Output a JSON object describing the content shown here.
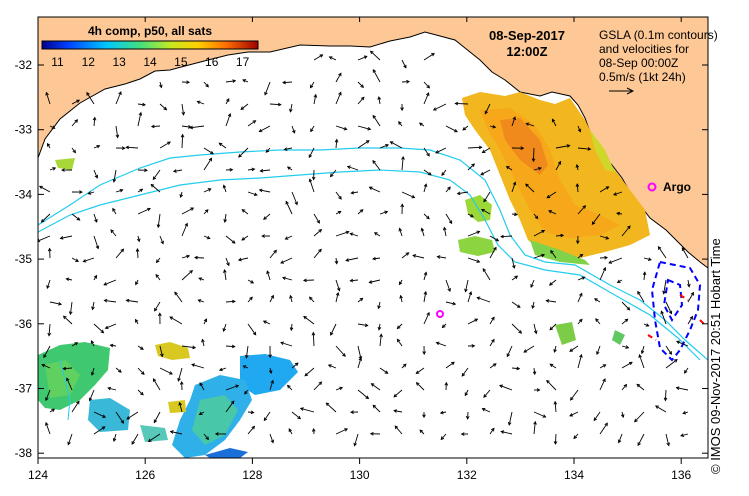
{
  "map": {
    "date": "08-Sep-2017",
    "time": "12:00Z",
    "colorbar": {
      "title": "4h comp, p50, all sats",
      "ticks": [
        "11",
        "12",
        "13",
        "14",
        "15",
        "16",
        "17"
      ],
      "range": [
        10.5,
        17.5
      ]
    },
    "legend": {
      "line1": "GSLA (0.1m contours)",
      "line2": "and velocities for",
      "line3": "08-Sep 00:00Z",
      "line4": "0.5m/s (1kt 24h)"
    },
    "argo_label": "Argo",
    "x_ticks": [
      "124",
      "126",
      "128",
      "130",
      "132",
      "134",
      "136"
    ],
    "y_ticks": [
      "-32",
      "-33",
      "-34",
      "-35",
      "-36",
      "-37",
      "-38"
    ],
    "credit": "© IMOS 09-Nov-2017 20:51 Hobart Time",
    "colors": {
      "land": "#fdc896",
      "contour": "#22ccee",
      "argo": "#ff00ff",
      "dashed_contour": "#0000ff",
      "arrows": "#000000"
    }
  }
}
